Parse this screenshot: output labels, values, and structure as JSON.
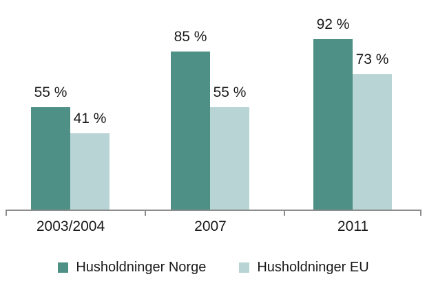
{
  "chart_data": {
    "type": "bar",
    "categories": [
      "2003/2004",
      "2007",
      "2011"
    ],
    "series": [
      {
        "name": "Husholdninger Norge",
        "color": "#4e9085",
        "values": [
          55,
          85,
          92
        ]
      },
      {
        "name": "Husholdninger EU",
        "color": "#b8d4d4",
        "values": [
          41,
          55,
          73
        ]
      }
    ],
    "value_suffix": " %",
    "ylim": [
      0,
      100
    ],
    "grid": false,
    "legend_position": "bottom",
    "axis_color": "#8c8c8c",
    "text_color": "#1a1a1a"
  }
}
